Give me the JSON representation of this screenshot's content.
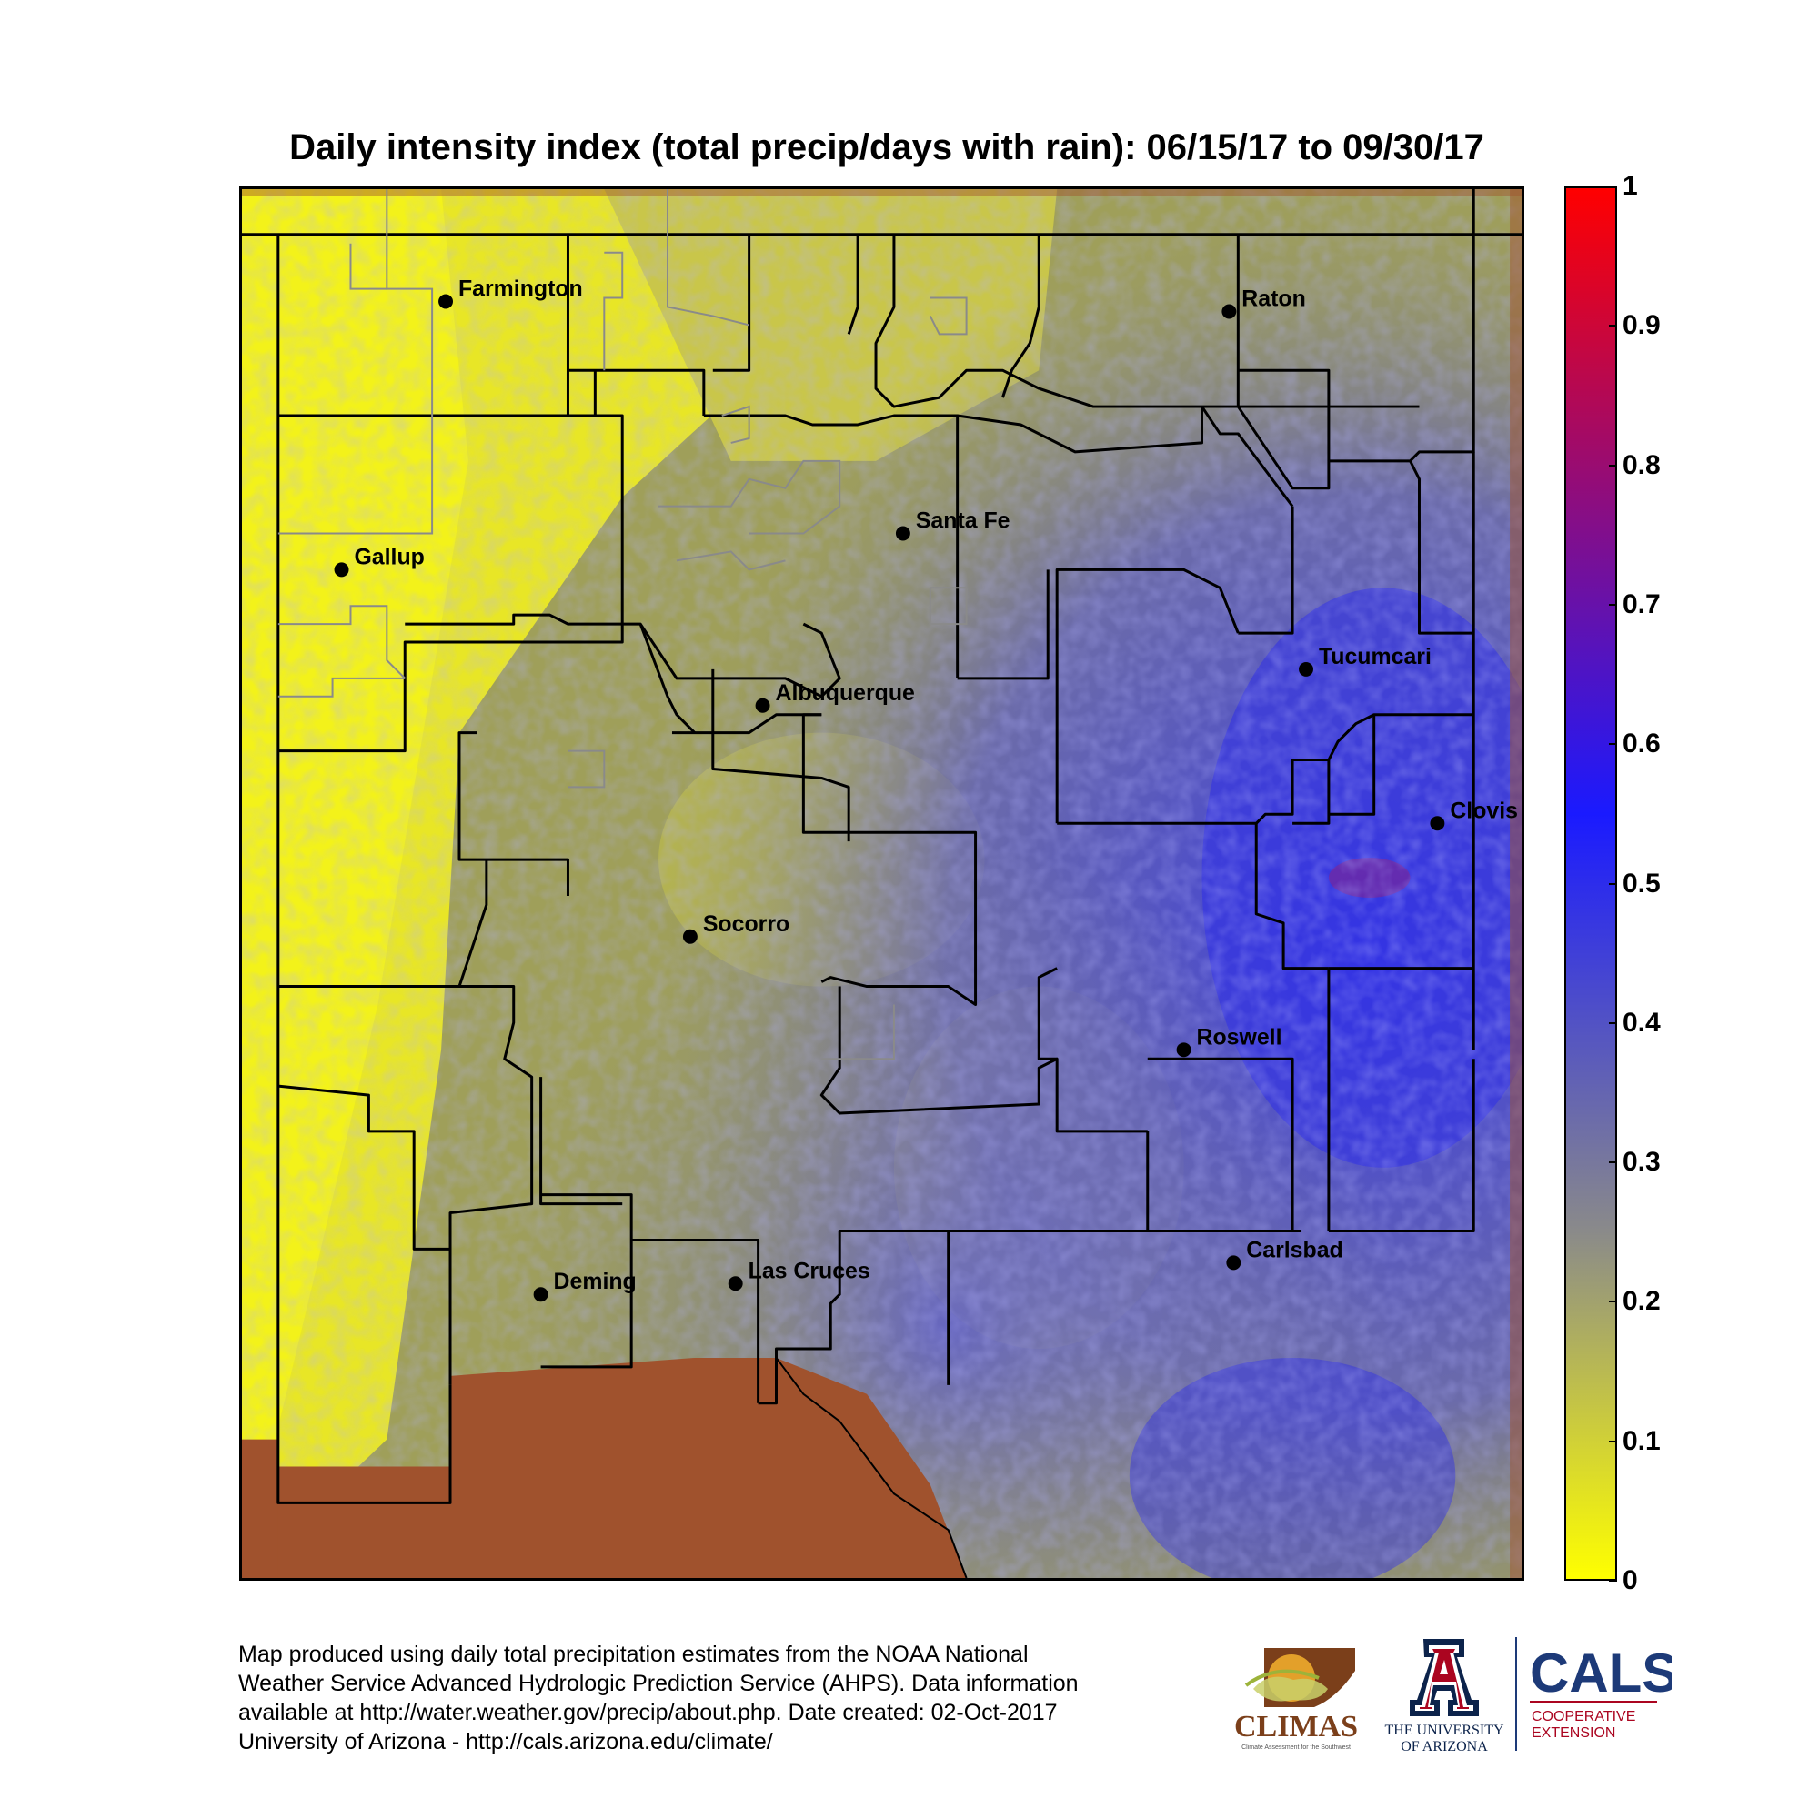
{
  "title": "Daily intensity index (total precip/days with rain): 06/15/17 to 09/30/17",
  "colorbar": {
    "min": 0,
    "max": 1,
    "ticks": [
      "1",
      "0.9",
      "0.8",
      "0.7",
      "0.6",
      "0.5",
      "0.4",
      "0.3",
      "0.2",
      "0.1",
      "0"
    ],
    "colors": [
      "#ffff00",
      "#8a8a8a",
      "#1a1aff",
      "#ff0000"
    ]
  },
  "no_data_color": "#a0522d",
  "cities": [
    {
      "name": "Farmington",
      "label": "Farmington"
    },
    {
      "name": "Raton",
      "label": "Raton"
    },
    {
      "name": "Santa Fe",
      "label": "Santa Fe"
    },
    {
      "name": "Gallup",
      "label": "Gallup"
    },
    {
      "name": "Albuquerque",
      "label": "Albuquerque"
    },
    {
      "name": "Tucumcari",
      "label": "Tucumcari"
    },
    {
      "name": "Clovis",
      "label": "Clovis"
    },
    {
      "name": "Socorro",
      "label": "Socorro"
    },
    {
      "name": "Roswell",
      "label": "Roswell"
    },
    {
      "name": "Carlsbad",
      "label": "Carlsbad"
    },
    {
      "name": "Deming",
      "label": "Deming"
    },
    {
      "name": "Las Cruces",
      "label": "Las Cruces"
    }
  ],
  "footer": {
    "line1": "Map produced using daily total precipitation estimates from the NOAA National",
    "line2": "Weather Service Advanced Hydrologic Prediction Service (AHPS). Data information",
    "line3": "available at http://water.weather.gov/precip/about.php. Date created: 02-Oct-2017",
    "line4": "University of Arizona - http://cals.arizona.edu/climate/"
  },
  "logos": {
    "climas": {
      "name": "CLIMAS",
      "tagline": "Climate Assessment for the Southwest"
    },
    "ua": {
      "line1": "THE UNIVERSITY",
      "line2": "OF ARIZONA"
    },
    "cals": {
      "name": "CALS",
      "line1": "COOPERATIVE",
      "line2": "EXTENSION"
    }
  }
}
